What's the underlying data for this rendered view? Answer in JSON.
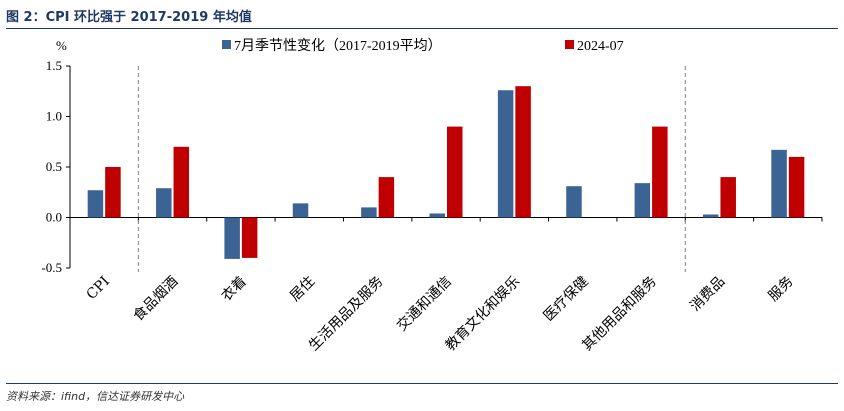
{
  "title": "图 2：CPI 环比强于 2017-2019 年均值",
  "source": "资料来源：ifind，信达证券研发中心",
  "colors": {
    "series1": "#3b6394",
    "series2": "#c00000",
    "axis": "#000000",
    "divider": "#808080"
  },
  "chart_data": {
    "type": "bar",
    "unit": "%",
    "categories": [
      "CPI",
      "食品烟酒",
      "衣着",
      "居住",
      "生活用品及服务",
      "交通和通信",
      "教育文化和娱乐",
      "医疗保健",
      "其他用品和服务",
      "消费品",
      "服务"
    ],
    "series": [
      {
        "name": "7月季节性变化（2017-2019平均）",
        "values": [
          0.27,
          0.29,
          -0.41,
          0.14,
          0.1,
          0.04,
          1.26,
          0.31,
          0.34,
          0.03,
          0.67
        ]
      },
      {
        "name": "2024-07",
        "values": [
          0.5,
          0.7,
          -0.4,
          null,
          0.4,
          0.9,
          1.3,
          null,
          0.9,
          0.4,
          0.6
        ]
      }
    ],
    "ylim": [
      -0.5,
      1.5
    ],
    "yticks": [
      "1.5",
      "1.0",
      "0.5",
      "0.0",
      "-0.5"
    ],
    "ytick_values": [
      1.5,
      1.0,
      0.5,
      0.0,
      -0.5
    ],
    "legend_position": "top",
    "grid": false
  }
}
